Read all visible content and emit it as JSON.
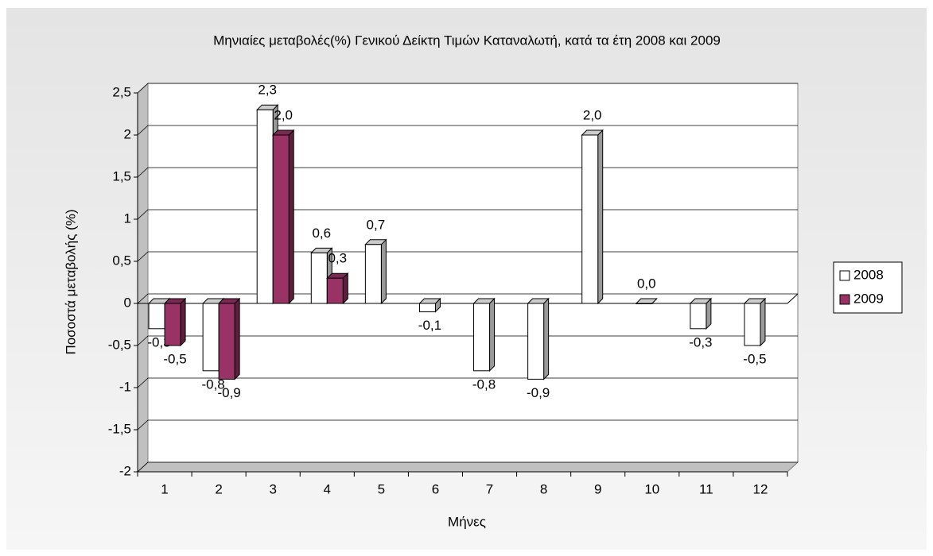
{
  "chart_data": {
    "type": "bar",
    "title": "Μηνιαίες μεταβολές(%) Γενικού Δείκτη Τιμών Καταναλωτή, κατά τα έτη 2008 και 2009",
    "x_label": "Μήνες",
    "y_label": "Ποσοστά μεταβολής (%)",
    "categories": [
      "1",
      "2",
      "3",
      "4",
      "5",
      "6",
      "7",
      "8",
      "9",
      "10",
      "11",
      "12"
    ],
    "series": [
      {
        "name": "2008",
        "color": "#ffffff",
        "values": [
          -0.3,
          -0.8,
          2.3,
          0.6,
          0.7,
          -0.1,
          -0.8,
          -0.9,
          2.0,
          0.0,
          -0.3,
          -0.5
        ],
        "value_labels": [
          "-0,3",
          "-0,8",
          "2,3",
          "0,6",
          "0,7",
          "-0,1",
          "-0,8",
          "-0,9",
          "2,0",
          "0,0",
          "-0,3",
          "-0,5"
        ]
      },
      {
        "name": "2009",
        "color": "#993366",
        "values": [
          -0.5,
          -0.9,
          2.0,
          0.3,
          null,
          null,
          null,
          null,
          null,
          null,
          null,
          null
        ],
        "value_labels": [
          "-0,5",
          "-0,9",
          "2,0",
          "0,3",
          null,
          null,
          null,
          null,
          null,
          null,
          null,
          null
        ]
      }
    ],
    "ylim": [
      -2,
      2.5
    ],
    "yticks": [
      {
        "value": 2.5,
        "label": "2,5"
      },
      2,
      {
        "value": 1.5,
        "label": "1,5"
      },
      1,
      {
        "value": 0.5,
        "label": "0,5"
      },
      0,
      {
        "value": -0.5,
        "label": "-0,5"
      },
      -1,
      {
        "value": -1.5,
        "label": "-1,5"
      },
      -2
    ],
    "grid": true,
    "legend": "right"
  }
}
